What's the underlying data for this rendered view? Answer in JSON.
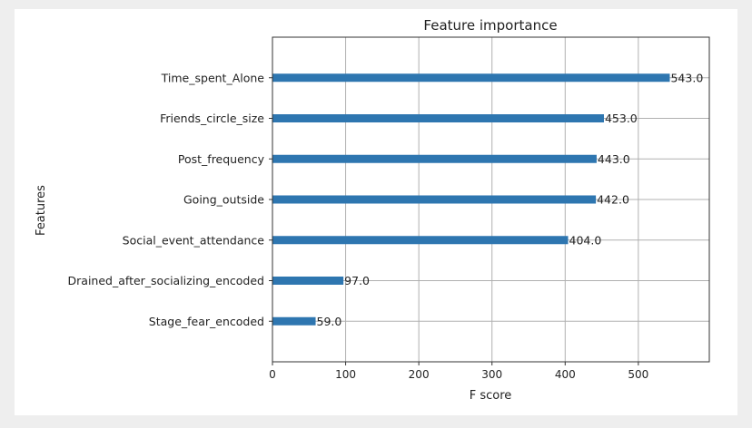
{
  "chart_data": {
    "type": "bar",
    "orientation": "horizontal",
    "title": "Feature importance",
    "xlabel": "F score",
    "ylabel": "Features",
    "categories": [
      "Time_spent_Alone",
      "Friends_circle_size",
      "Post_frequency",
      "Going_outside",
      "Social_event_attendance",
      "Drained_after_socializing_encoded",
      "Stage_fear_encoded"
    ],
    "values": [
      543.0,
      453.0,
      443.0,
      442.0,
      404.0,
      97.0,
      59.0
    ],
    "data_labels": [
      "543.0",
      "453.0",
      "443.0",
      "442.0",
      "404.0",
      "97.0",
      "59.0"
    ],
    "xticks": [
      0,
      100,
      200,
      300,
      400,
      500
    ],
    "xlim": [
      0,
      597
    ],
    "grid": true,
    "bar_color": "#2e76b0"
  }
}
